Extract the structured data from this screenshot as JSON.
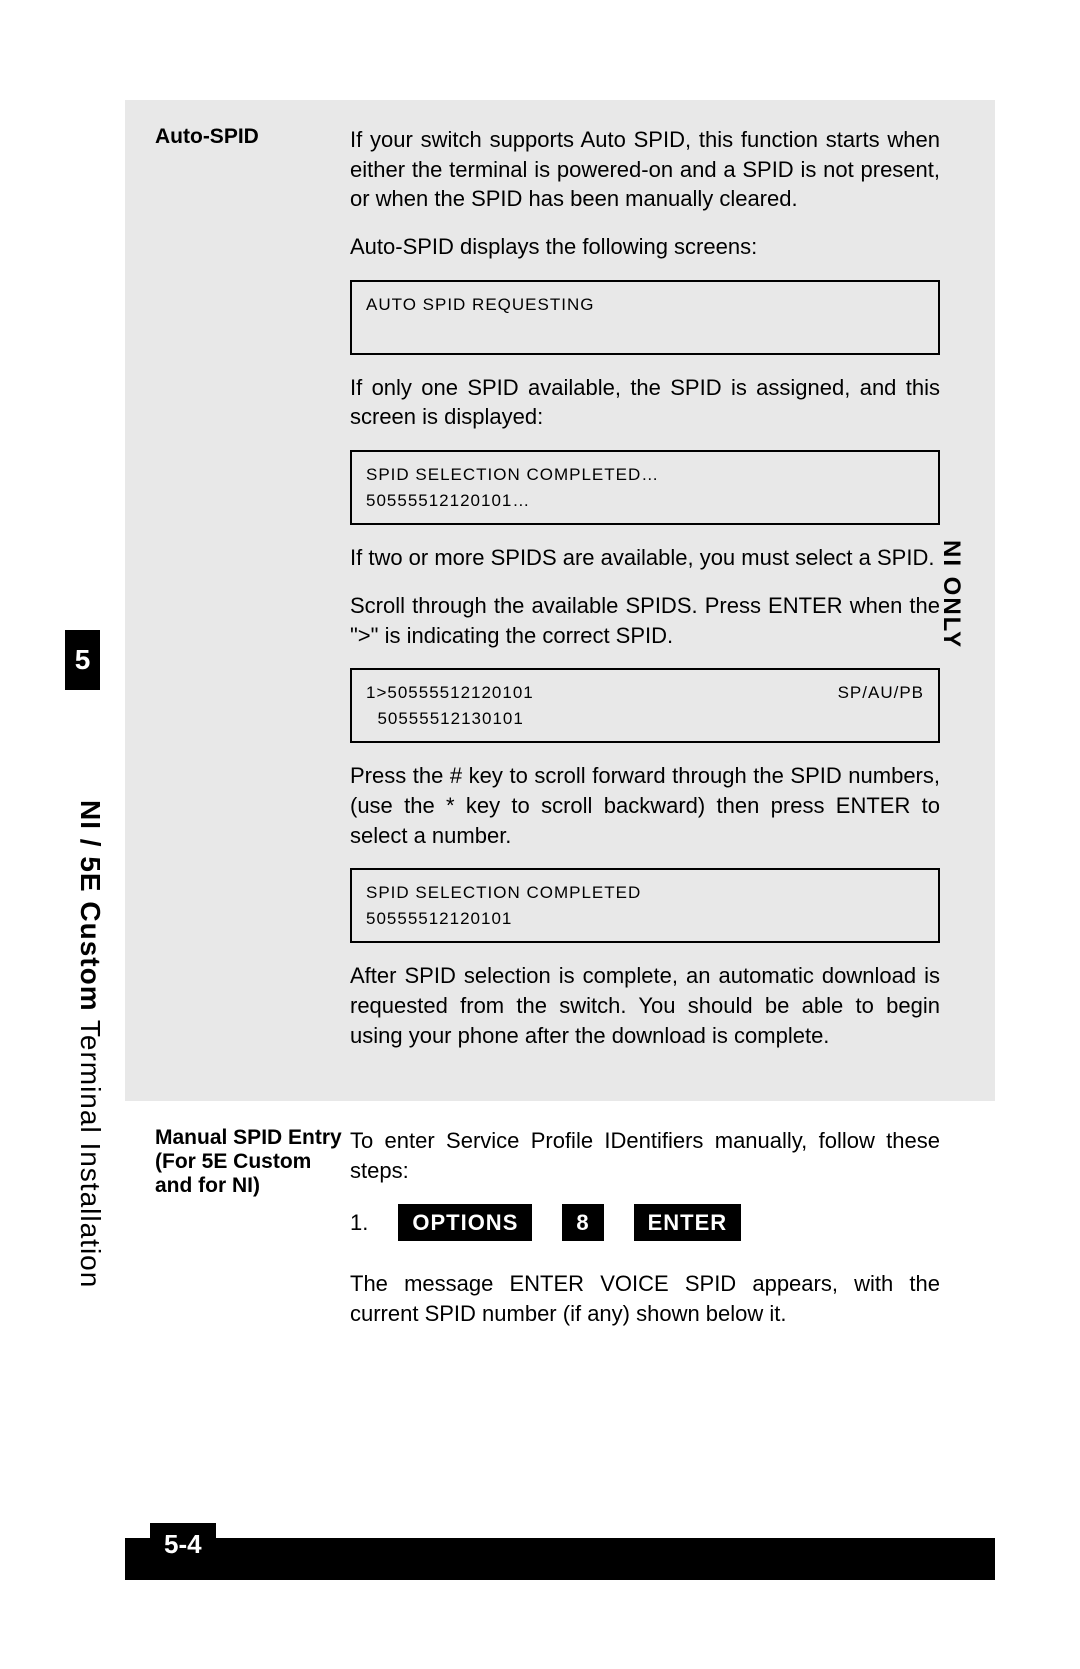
{
  "colors": {
    "page_bg": "#ffffff",
    "gray_bg": "#e8e8e8",
    "black": "#000000",
    "text": "#000000"
  },
  "typography": {
    "body_fontsize": 22,
    "label_fontsize": 21,
    "screen_fontsize": 17,
    "tab_fontsize": 28,
    "footer_fontsize": 26,
    "font_family": "Arial"
  },
  "section_number": "5",
  "side_label_bold": "NI / 5E Custom",
  "side_label_rest": " Terminal Installation",
  "ni_only_label": "NI ONLY",
  "auto_spid": {
    "heading": "Auto-SPID",
    "para1": "If your switch supports Auto SPID, this function starts when either the terminal is powered-on and a SPID is not present, or when the SPID has been manually cleared.",
    "para2": "Auto-SPID displays the following screens:",
    "screen1": "AUTO SPID REQUESTING",
    "para3": "If only one SPID available, the SPID is assigned, and this screen is displayed:",
    "screen2_line1": "SPID SELECTION COMPLETED…",
    "screen2_line2": "50555512120101…",
    "para4": "If two or more SPIDS are available, you must select a SPID.",
    "para5": "Scroll through the available SPIDS.  Press ENTER when the \">\" is indicating the correct SPID.",
    "screen3_line1_left": "1>50555512120101",
    "screen3_line1_right": "SP/AU/PB",
    "screen3_line2": "  50555512130101",
    "para6": "Press the # key to scroll forward through the SPID numbers, (use the * key to scroll backward) then press ENTER to select a number.",
    "screen4_line1": "SPID SELECTION COMPLETED",
    "screen4_line2": "50555512120101",
    "para7": "After SPID selection is complete, an automatic download is requested from the switch.  You should be able to begin using your phone after the download is complete."
  },
  "manual_spid": {
    "heading": "Manual SPID Entry (For 5E Custom and for NI)",
    "para1": "To enter Service Profile IDentifiers manually, follow these steps:",
    "step_num": "1.",
    "key1": "OPTIONS",
    "key2": "8",
    "key3": "ENTER",
    "para2": "The message ENTER VOICE SPID appears, with the current SPID number (if any) shown below it."
  },
  "page_number": "5-4"
}
